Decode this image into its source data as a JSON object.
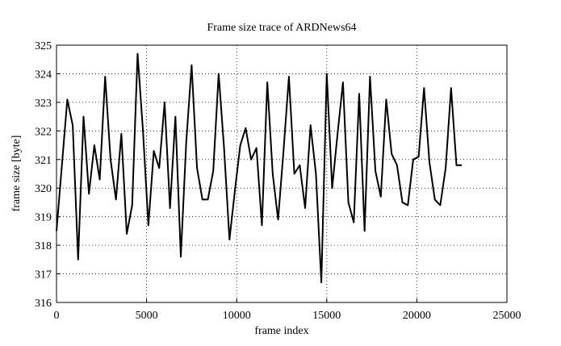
{
  "chart_data": {
    "type": "line",
    "title": "Frame size trace of ARDNews64",
    "x_label": "frame index",
    "y_label": "frame size [byte]",
    "x": [
      0,
      300,
      600,
      900,
      1200,
      1500,
      1800,
      2100,
      2400,
      2700,
      3000,
      3300,
      3600,
      3900,
      4200,
      4500,
      4800,
      5100,
      5400,
      5700,
      6000,
      6300,
      6600,
      6900,
      7200,
      7500,
      7800,
      8100,
      8400,
      8700,
      9000,
      9300,
      9600,
      9900,
      10200,
      10500,
      10800,
      11100,
      11400,
      11700,
      12000,
      12300,
      12600,
      12900,
      13200,
      13500,
      13800,
      14100,
      14400,
      14700,
      15000,
      15300,
      15600,
      15900,
      16200,
      16500,
      16800,
      17100,
      17400,
      17700,
      18000,
      18300,
      18600,
      18900,
      19200,
      19500,
      19800,
      20100,
      20400,
      20700,
      21000,
      21300,
      21600,
      21900,
      22200,
      22500
    ],
    "series": [
      {
        "name": "ARDNews64",
        "color": "#000000",
        "values": [
          318.5,
          320.8,
          323.1,
          322.2,
          317.5,
          322.5,
          319.8,
          321.5,
          320.3,
          323.9,
          321.0,
          319.6,
          321.9,
          318.4,
          319.4,
          324.7,
          322.0,
          318.7,
          321.3,
          320.7,
          323.0,
          319.3,
          322.5,
          317.6,
          321.6,
          324.3,
          320.7,
          319.6,
          319.6,
          320.6,
          324.0,
          321.4,
          318.2,
          319.9,
          321.5,
          322.1,
          321.0,
          321.4,
          318.7,
          323.7,
          320.5,
          318.9,
          321.3,
          323.9,
          320.5,
          320.8,
          319.3,
          322.2,
          320.5,
          316.7,
          324.0,
          320.0,
          321.9,
          323.7,
          319.5,
          318.8,
          323.3,
          318.5,
          323.9,
          320.6,
          319.7,
          323.1,
          321.2,
          320.8,
          319.5,
          319.4,
          321.0,
          321.1,
          323.5,
          320.9,
          319.6,
          319.4,
          320.7,
          323.5,
          320.8,
          320.8
        ]
      }
    ],
    "xlim": [
      0,
      25000
    ],
    "xticks": [
      0,
      5000,
      10000,
      15000,
      20000,
      25000
    ],
    "ylim": [
      316,
      325
    ],
    "yticks": [
      316,
      317,
      318,
      319,
      320,
      321,
      322,
      323,
      324,
      325
    ],
    "grid": true
  }
}
